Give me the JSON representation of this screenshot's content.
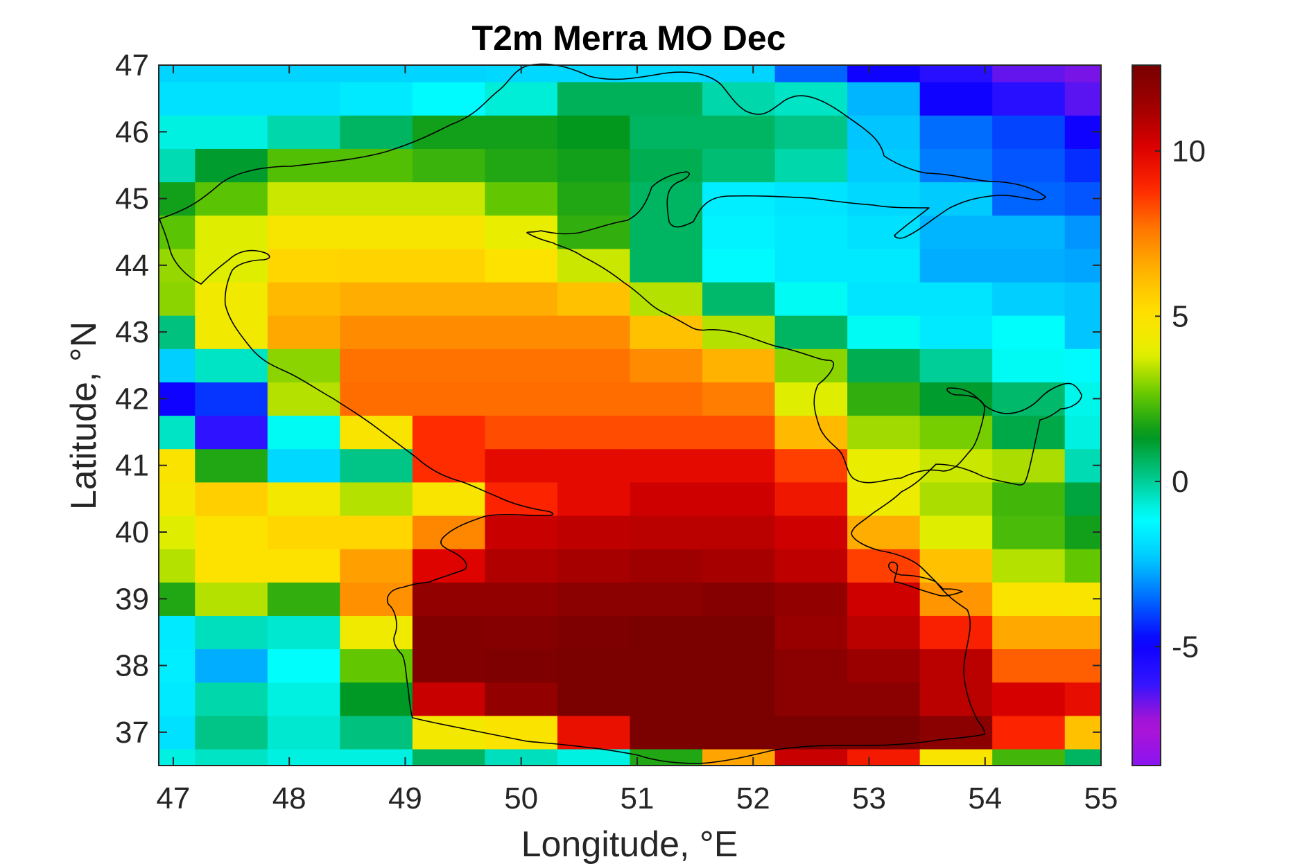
{
  "chart_data": {
    "type": "heatmap",
    "title": "T2m Merra MO Dec",
    "xlabel": "Longitude, °E",
    "ylabel": "Latitude, °N",
    "xlim": [
      46.875,
      55.0
    ],
    "ylim": [
      36.5,
      47.0
    ],
    "x_ticks": [
      47,
      48,
      49,
      50,
      51,
      52,
      53,
      54,
      55
    ],
    "y_ticks": [
      37,
      38,
      39,
      40,
      41,
      42,
      43,
      44,
      45,
      46,
      47
    ],
    "x_tick_labels": [
      "47",
      "48",
      "49",
      "50",
      "51",
      "52",
      "53",
      "54",
      "55"
    ],
    "y_tick_labels": [
      "37",
      "38",
      "39",
      "40",
      "41",
      "42",
      "43",
      "44",
      "45",
      "46",
      "47"
    ],
    "lon_edges": [
      46.875,
      47.1875,
      47.8125,
      48.4375,
      49.0625,
      49.6875,
      50.3125,
      50.9375,
      51.5625,
      52.1875,
      52.8125,
      53.4375,
      54.0625,
      54.6875,
      55.0
    ],
    "lat_edges": [
      36.5,
      36.75,
      37.25,
      37.75,
      38.25,
      38.75,
      39.25,
      39.75,
      40.25,
      40.75,
      41.25,
      41.75,
      42.25,
      42.75,
      43.25,
      43.75,
      44.25,
      44.75,
      45.25,
      45.75,
      46.25,
      46.75,
      47.0
    ],
    "values_rows_south_to_north": [
      [
        -0.8,
        -0.5,
        -0.8,
        -0.8,
        0.6,
        -0.4,
        -0.8,
        1.8,
        6.7,
        10.5,
        9.3,
        4.8,
        2.2,
        0.6
      ],
      [
        -1.8,
        0.2,
        -0.6,
        0.3,
        4.5,
        4.9,
        9.6,
        12.5,
        12.5,
        12.5,
        12.5,
        12.0,
        9.0,
        6.0
      ],
      [
        -1.6,
        -0.2,
        -0.8,
        1.3,
        10.5,
        11.8,
        12.5,
        12.5,
        12.5,
        12.0,
        12.0,
        10.8,
        10.2,
        9.7
      ],
      [
        -1.5,
        -2.7,
        -1.1,
        2.6,
        12.3,
        12.4,
        12.5,
        12.5,
        12.5,
        12.0,
        11.5,
        10.8,
        8.0,
        8.0
      ],
      [
        -1.6,
        -0.4,
        -0.6,
        4.3,
        12.3,
        12.2,
        12.4,
        12.5,
        12.5,
        11.6,
        10.8,
        9.1,
        6.6,
        6.6
      ],
      [
        1.8,
        3.4,
        2.0,
        7.1,
        11.8,
        11.8,
        12.0,
        12.0,
        12.2,
        11.8,
        10.4,
        7.0,
        4.9,
        4.8
      ],
      [
        3.4,
        5.0,
        5.0,
        6.8,
        10.0,
        11.0,
        11.2,
        11.4,
        11.2,
        10.7,
        8.5,
        6.0,
        3.4,
        2.6
      ],
      [
        3.8,
        5.0,
        5.4,
        5.4,
        7.3,
        10.5,
        10.7,
        10.8,
        10.8,
        10.4,
        6.5,
        3.8,
        2.3,
        1.6
      ],
      [
        4.6,
        5.6,
        4.5,
        3.4,
        4.8,
        9.0,
        9.8,
        10.4,
        10.4,
        9.4,
        4.2,
        3.3,
        2.2,
        1.0
      ],
      [
        4.9,
        1.8,
        -2.0,
        0.2,
        8.8,
        9.8,
        9.8,
        9.8,
        9.8,
        8.5,
        4.0,
        3.6,
        3.3,
        -0.3
      ],
      [
        -0.5,
        -6.0,
        -1.0,
        4.8,
        8.8,
        8.3,
        8.3,
        8.3,
        8.3,
        6.2,
        3.2,
        2.8,
        0.9,
        -0.8
      ],
      [
        -5.0,
        -4.2,
        3.4,
        7.8,
        7.8,
        7.8,
        7.8,
        7.8,
        7.5,
        3.8,
        2.0,
        1.2,
        0.5,
        -0.9
      ],
      [
        -2.2,
        -0.5,
        3.0,
        7.7,
        7.7,
        7.7,
        7.7,
        7.2,
        6.4,
        3.0,
        0.8,
        0.0,
        -1.0,
        -1.2
      ],
      [
        0.3,
        4.4,
        6.6,
        7.2,
        7.2,
        7.2,
        7.2,
        6.0,
        3.4,
        0.6,
        -1.0,
        -1.6,
        -1.1,
        -2.4
      ],
      [
        3.0,
        4.4,
        6.2,
        6.5,
        6.5,
        6.5,
        6.0,
        3.4,
        0.5,
        -1.0,
        -1.7,
        -1.7,
        -2.2,
        -2.4
      ],
      [
        3.1,
        3.8,
        5.4,
        5.5,
        5.5,
        5.0,
        3.6,
        0.6,
        -1.2,
        -1.6,
        -1.6,
        -2.7,
        -2.7,
        -2.8
      ],
      [
        2.5,
        3.8,
        4.7,
        4.7,
        4.7,
        4.0,
        2.0,
        0.6,
        -1.4,
        -1.6,
        -1.8,
        -2.6,
        -2.6,
        -3.0
      ],
      [
        1.6,
        2.5,
        3.6,
        3.6,
        3.6,
        2.6,
        1.8,
        0.6,
        -1.5,
        -1.7,
        -2.0,
        -2.3,
        -3.6,
        -3.8
      ],
      [
        -0.3,
        1.2,
        2.4,
        2.4,
        2.1,
        1.8,
        1.6,
        0.8,
        0.4,
        -0.2,
        -2.3,
        -3.3,
        -3.8,
        -4.3
      ],
      [
        -0.8,
        -0.8,
        -0.2,
        0.6,
        1.6,
        1.6,
        1.4,
        0.6,
        0.6,
        0.2,
        -2.4,
        -3.5,
        -4.0,
        -5.0
      ],
      [
        -1.8,
        -1.8,
        -1.8,
        -1.6,
        -1.2,
        -0.7,
        0.7,
        0.7,
        -0.2,
        -0.5,
        -2.6,
        -5.0,
        -5.8,
        -6.5
      ],
      [
        -2.1,
        -2.1,
        -2.1,
        -2.1,
        -2.1,
        -2.0,
        -2.0,
        -2.0,
        -2.1,
        -3.6,
        -5.0,
        -5.8,
        -6.6,
        -6.8
      ]
    ],
    "clim": [
      -8.6,
      12.6
    ],
    "colormap": "jet-like (violet → blue → cyan → green → yellow → orange → red → dark red)",
    "colorbar_ticks": [
      -5,
      0,
      5,
      10
    ],
    "colorbar_tick_labels": [
      "-5",
      "0",
      "5",
      "10"
    ],
    "colorbar_position": "right",
    "grid": false,
    "overlay": "black coastline outline of the Caspian Sea",
    "colors": {
      "colormap_stops": [
        "#8B14F0",
        "#B014D2",
        "#3214FF",
        "#0A00FF",
        "#0064FF",
        "#00C8FF",
        "#00FFFF",
        "#00C88C",
        "#00961E",
        "#64C800",
        "#E6F000",
        "#FFE000",
        "#FFB400",
        "#FF7800",
        "#FF2800",
        "#DC0000",
        "#A00000",
        "#780000"
      ],
      "coastline": "#000000",
      "axis": "#262626"
    }
  }
}
